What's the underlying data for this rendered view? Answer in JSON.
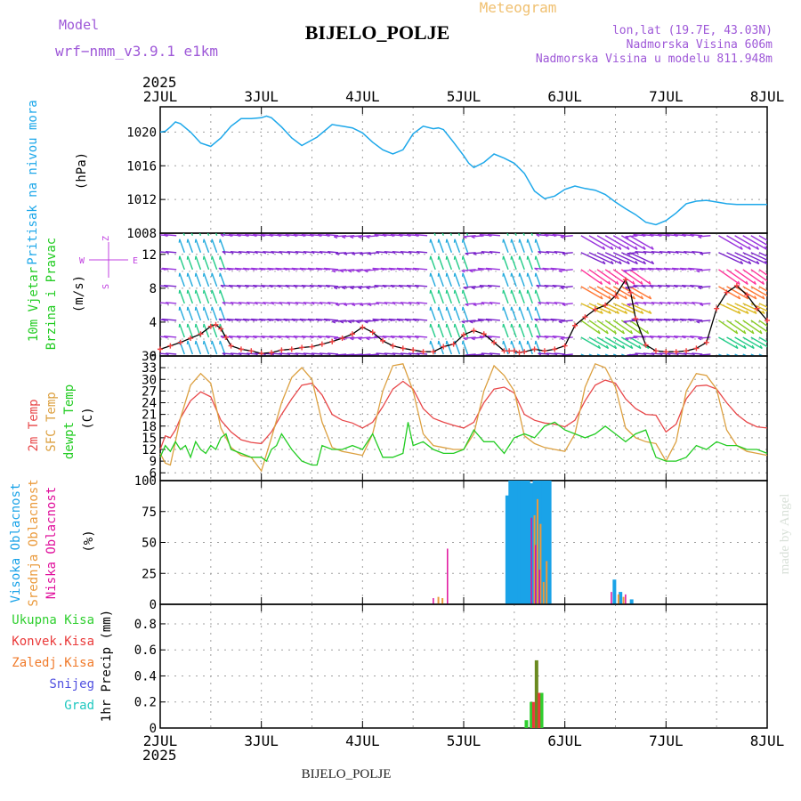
{
  "header": {
    "model_label": "Model",
    "model_name": "wrf−nmm_v3.9.1  e1km",
    "station": "BIJELO_POLJE",
    "product": "Meteogram",
    "coords": "lon,lat (19.7E, 43.03N)",
    "elevation": "Nadmorska Visina 606m",
    "model_elevation": "Nadmorska Visina u modelu 811.948m"
  },
  "time_axis": {
    "year": "2025",
    "ticks": [
      "2JUL",
      "3JUL",
      "4JUL",
      "5JUL",
      "6JUL",
      "7JUL",
      "8JUL"
    ]
  },
  "footer": {
    "station": "BIJELO_POLJE"
  },
  "watermark": "made by Angel",
  "colors": {
    "pressure": "#1ea8ea",
    "temp2m": "#e8484a",
    "sfc_temp": "#dca040",
    "dewpoint": "#22cc22",
    "high_cloud": "#1aa3e8",
    "mid_cloud": "#ea9a3c",
    "low_cloud": "#e0109c",
    "total_precip": "#2fcf2f",
    "conv_precip": "#ea3a3a",
    "frozen_precip": "#f07a2a",
    "snow": "#5050e0",
    "hail": "#20c8c0",
    "wind_speed": "#000000",
    "wind_speed_markers": "#f04040",
    "wind_labels": "#c040e0",
    "labels": "#9e58d8",
    "product": "#f0c070"
  },
  "chart_data": [
    {
      "type": "line",
      "title": "Pritisak na nivou mora",
      "ylabel": "(hPa)",
      "ylim": [
        1008,
        1023
      ],
      "yticks": [
        1008,
        1012,
        1016,
        1020
      ],
      "grid": true,
      "series": [
        {
          "name": "Pritisak na nivou mora",
          "x": [
            0,
            0.05,
            0.1,
            0.15,
            0.2,
            0.3,
            0.4,
            0.5,
            0.6,
            0.7,
            0.8,
            0.9,
            1.0,
            1.05,
            1.1,
            1.2,
            1.3,
            1.4,
            1.55,
            1.7,
            1.8,
            1.9,
            2.0,
            2.1,
            2.2,
            2.3,
            2.4,
            2.5,
            2.6,
            2.7,
            2.75,
            2.8,
            2.9,
            3.0,
            3.05,
            3.1,
            3.2,
            3.3,
            3.4,
            3.5,
            3.6,
            3.7,
            3.8,
            3.9,
            4.0,
            4.1,
            4.2,
            4.3,
            4.4,
            4.5,
            4.6,
            4.7,
            4.8,
            4.9,
            5.0,
            5.1,
            5.2,
            5.3,
            5.4,
            5.5,
            5.6,
            5.7,
            5.8,
            5.85,
            5.9,
            6.0
          ],
          "y": [
            1020,
            1020.1,
            1020.6,
            1021.2,
            1021.0,
            1020.0,
            1018.7,
            1018.3,
            1019.3,
            1020.7,
            1021.6,
            1021.6,
            1021.7,
            1021.9,
            1021.7,
            1020.6,
            1019.3,
            1018.4,
            1019.4,
            1020.9,
            1020.7,
            1020.5,
            1019.9,
            1018.8,
            1017.9,
            1017.4,
            1017.9,
            1019.8,
            1020.7,
            1020.4,
            1020.5,
            1020.3,
            1018.8,
            1017.2,
            1016.3,
            1015.8,
            1016.4,
            1017.4,
            1016.9,
            1016.3,
            1015.1,
            1013.0,
            1012.1,
            1012.4,
            1013.2,
            1013.6,
            1013.3,
            1013.1,
            1012.6,
            1011.7,
            1010.9,
            1010.2,
            1009.3,
            1009.0,
            1009.5,
            1010.4,
            1011.5,
            1011.8,
            1011.9,
            1011.7,
            1011.5,
            1011.4,
            1011.4,
            1011.4,
            1011.4,
            1011.4
          ]
        }
      ]
    },
    {
      "type": "line",
      "title": "10m Vjetar Brzina i Pravac",
      "ylabel": "(m/s)",
      "ylim": [
        0,
        14.5
      ],
      "yticks": [
        0,
        4,
        8,
        12
      ],
      "yticks_extra": [
        2,
        6,
        10
      ],
      "grid": true,
      "compass": [
        "Z",
        "W",
        "E",
        "S",
        "N"
      ],
      "series": [
        {
          "name": "Brzina",
          "x": [
            0,
            0.1,
            0.2,
            0.3,
            0.4,
            0.5,
            0.55,
            0.6,
            0.65,
            0.7,
            0.8,
            0.9,
            1.0,
            1.1,
            1.2,
            1.3,
            1.4,
            1.5,
            1.6,
            1.7,
            1.8,
            1.9,
            2.0,
            2.1,
            2.2,
            2.3,
            2.4,
            2.5,
            2.6,
            2.7,
            2.8,
            2.9,
            3.0,
            3.1,
            3.2,
            3.3,
            3.4,
            3.45,
            3.5,
            3.55,
            3.6,
            3.7,
            3.8,
            3.9,
            4.0,
            4.1,
            4.2,
            4.3,
            4.4,
            4.5,
            4.6,
            4.65,
            4.7,
            4.8,
            4.9,
            5.0,
            5.1,
            5.2,
            5.3,
            5.4,
            5.5,
            5.6,
            5.7,
            5.8,
            5.9,
            6.0
          ],
          "y": [
            0.8,
            1.2,
            1.6,
            2.1,
            2.6,
            3.5,
            3.7,
            3.2,
            2.2,
            1.2,
            0.8,
            0.6,
            0.3,
            0.4,
            0.7,
            0.8,
            1.0,
            1.1,
            1.4,
            1.7,
            2.1,
            2.6,
            3.4,
            2.8,
            1.8,
            1.2,
            0.9,
            0.7,
            0.5,
            0.5,
            1.1,
            1.4,
            2.5,
            3.0,
            2.6,
            1.6,
            0.6,
            0.6,
            0.6,
            0.4,
            0.5,
            0.8,
            0.6,
            0.8,
            1.2,
            3.6,
            4.6,
            5.5,
            6.0,
            7.1,
            9.0,
            7.5,
            4.4,
            1.3,
            0.6,
            0.5,
            0.5,
            0.6,
            0.9,
            1.6,
            5.6,
            7.5,
            8.3,
            7.2,
            5.6,
            4.2
          ]
        }
      ]
    },
    {
      "type": "line",
      "ylabel": "(C)",
      "ylim": [
        4,
        36
      ],
      "yticks": [
        6,
        9,
        12,
        15,
        18,
        21,
        24,
        27,
        30,
        33,
        36
      ],
      "grid": true,
      "series": [
        {
          "name": "2m Temp",
          "x": [
            0,
            0.05,
            0.1,
            0.15,
            0.2,
            0.3,
            0.4,
            0.5,
            0.6,
            0.7,
            0.8,
            0.9,
            1.0,
            1.1,
            1.2,
            1.3,
            1.4,
            1.5,
            1.6,
            1.7,
            1.8,
            1.9,
            2.0,
            2.1,
            2.2,
            2.3,
            2.4,
            2.5,
            2.6,
            2.7,
            2.8,
            2.9,
            3.0,
            3.1,
            3.2,
            3.3,
            3.4,
            3.5,
            3.6,
            3.7,
            3.8,
            3.9,
            4.0,
            4.1,
            4.2,
            4.3,
            4.4,
            4.5,
            4.6,
            4.7,
            4.8,
            4.9,
            5.0,
            5.1,
            5.2,
            5.3,
            5.4,
            5.5,
            5.6,
            5.7,
            5.8,
            5.9,
            6.0
          ],
          "y": [
            12,
            15.5,
            15,
            17,
            20,
            24.5,
            26.8,
            25.5,
            19.5,
            16.5,
            14.5,
            13.8,
            13.5,
            16.5,
            21,
            25,
            28.5,
            29,
            26,
            21,
            19.5,
            18.8,
            17.5,
            19,
            23,
            27.5,
            29.5,
            27.5,
            22.5,
            20,
            19,
            18.2,
            17.5,
            19,
            24,
            27.5,
            28,
            26.5,
            21,
            19.5,
            18.8,
            18.5,
            17.8,
            19.5,
            24.5,
            28.5,
            29.8,
            29,
            25,
            22.5,
            21,
            20.8,
            16.5,
            18.5,
            25,
            28.3,
            28.5,
            27.5,
            24,
            21,
            19,
            17.8,
            17.5
          ]
        },
        {
          "name": "SFC Temp",
          "x": [
            0,
            0.05,
            0.1,
            0.15,
            0.2,
            0.3,
            0.4,
            0.5,
            0.6,
            0.7,
            0.8,
            0.9,
            1.0,
            1.1,
            1.2,
            1.3,
            1.4,
            1.5,
            1.6,
            1.7,
            1.8,
            1.9,
            2.0,
            2.1,
            2.2,
            2.3,
            2.4,
            2.5,
            2.6,
            2.7,
            2.8,
            2.9,
            3.0,
            3.1,
            3.2,
            3.3,
            3.4,
            3.5,
            3.6,
            3.7,
            3.8,
            3.9,
            4.0,
            4.1,
            4.2,
            4.3,
            4.4,
            4.5,
            4.6,
            4.7,
            4.8,
            4.9,
            5.0,
            5.1,
            5.2,
            5.3,
            5.4,
            5.5,
            5.6,
            5.7,
            5.8,
            5.9,
            6.0
          ],
          "y": [
            11,
            8.5,
            8,
            14,
            20,
            28.5,
            31.5,
            29,
            17.5,
            12.5,
            10.5,
            10,
            6.5,
            15,
            24,
            30.5,
            33,
            30,
            19,
            12.5,
            11.5,
            11,
            10.5,
            16,
            27,
            33.5,
            34,
            27,
            16,
            13,
            12.5,
            12,
            12,
            16,
            27,
            33.5,
            31,
            27,
            15.5,
            13.5,
            12.5,
            12,
            11.5,
            16,
            28,
            34,
            33,
            28,
            17.5,
            15,
            14,
            13.5,
            9,
            14,
            27,
            31.5,
            31,
            27.5,
            17,
            13,
            11.5,
            11,
            10.5
          ]
        },
        {
          "name": "dewpt Temp",
          "x": [
            0,
            0.05,
            0.1,
            0.15,
            0.2,
            0.25,
            0.3,
            0.35,
            0.4,
            0.45,
            0.5,
            0.55,
            0.6,
            0.65,
            0.7,
            0.8,
            0.9,
            1.0,
            1.05,
            1.1,
            1.15,
            1.2,
            1.3,
            1.4,
            1.5,
            1.55,
            1.6,
            1.7,
            1.8,
            1.9,
            2.0,
            2.1,
            2.2,
            2.3,
            2.4,
            2.45,
            2.5,
            2.6,
            2.7,
            2.8,
            2.9,
            3.0,
            3.1,
            3.2,
            3.3,
            3.4,
            3.5,
            3.6,
            3.7,
            3.8,
            3.9,
            4.0,
            4.1,
            4.2,
            4.3,
            4.4,
            4.5,
            4.6,
            4.7,
            4.8,
            4.9,
            5.0,
            5.1,
            5.2,
            5.3,
            5.4,
            5.5,
            5.6,
            5.7,
            5.8,
            5.9,
            6.0
          ],
          "y": [
            10,
            13,
            11.5,
            14,
            12,
            13,
            10,
            14,
            12,
            11,
            13,
            12,
            15,
            16,
            12,
            11,
            10,
            10,
            9,
            12,
            13,
            16,
            12,
            9,
            8,
            8,
            13,
            12,
            12,
            13,
            12,
            16,
            10,
            10,
            11,
            19,
            13,
            14,
            12,
            11,
            11,
            12,
            17,
            14,
            14,
            11,
            15,
            16,
            15,
            18,
            19,
            17,
            16,
            15,
            16,
            18,
            16,
            14,
            16,
            17,
            10,
            9,
            9,
            10,
            13,
            12,
            14,
            13,
            13,
            12,
            12,
            11
          ]
        }
      ]
    },
    {
      "type": "bar",
      "ylabel": "(%)",
      "ylim": [
        0,
        100
      ],
      "yticks": [
        0,
        25,
        50,
        75,
        100
      ],
      "grid": true,
      "series": [
        {
          "name": "Visoka Oblacnost",
          "x": [
            3.43,
            3.46,
            3.49,
            3.52,
            3.55,
            3.58,
            3.61,
            3.64,
            3.67,
            3.7,
            3.73,
            3.76,
            3.79,
            3.82,
            3.85,
            4.49,
            4.55,
            4.66
          ],
          "y": [
            88,
            100,
            100,
            100,
            100,
            100,
            100,
            100,
            98,
            100,
            100,
            100,
            100,
            100,
            100,
            20,
            10,
            4
          ]
        },
        {
          "name": "Srednja Oblacnost",
          "x": [
            2.75,
            2.79,
            3.7,
            3.73,
            3.76,
            3.79,
            3.82,
            4.53,
            4.58
          ],
          "y": [
            6,
            5,
            72,
            85,
            65,
            18,
            35,
            8,
            6
          ]
        },
        {
          "name": "Niska Oblacnost",
          "x": [
            2.7,
            2.84,
            3.67,
            3.71,
            3.75,
            4.46,
            4.6
          ],
          "y": [
            5,
            45,
            70,
            48,
            28,
            10,
            8
          ]
        }
      ]
    },
    {
      "type": "bar",
      "ylabel": "1hr Precip (mm)",
      "ylim": [
        0,
        0.95
      ],
      "yticks": [
        0,
        0.2,
        0.4,
        0.6,
        0.8
      ],
      "grid": true,
      "series": [
        {
          "name": "Ukupna Kisa",
          "x": [
            3.62,
            3.67,
            3.72,
            3.77
          ],
          "y": [
            0.06,
            0.2,
            0.52,
            0.27
          ]
        },
        {
          "name": "Konvek.Kisa",
          "x": [
            3.69,
            3.745
          ],
          "y": [
            0.2,
            0.27
          ]
        },
        {
          "name": "Zaledj.Kisa",
          "x": [],
          "y": []
        },
        {
          "name": "Snijeg",
          "x": [],
          "y": []
        },
        {
          "name": "Grad",
          "x": [],
          "y": []
        }
      ]
    }
  ]
}
